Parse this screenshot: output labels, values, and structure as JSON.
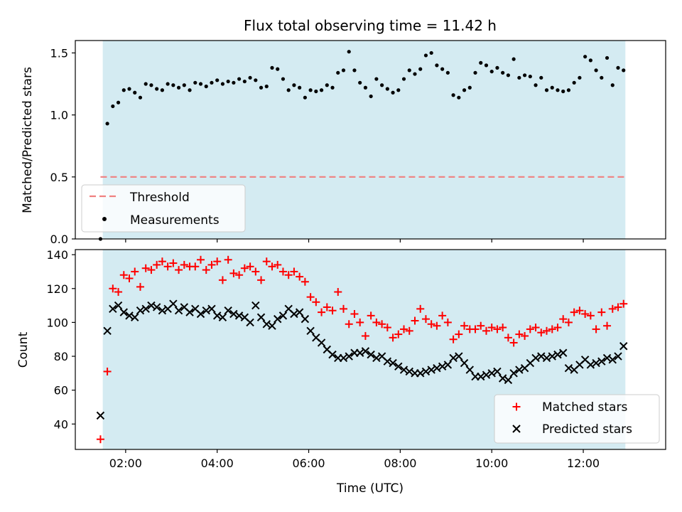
{
  "title": "Flux total observing time = 11.42 h",
  "colors": {
    "shade": "#d4ebf2",
    "threshold": "#f08080",
    "measurement": "#000000",
    "matched": "#ff0000",
    "predicted": "#000000"
  },
  "chart_data": [
    {
      "type": "scatter",
      "ylabel": "Matched/Predicted stars",
      "xlim": [
        0.9,
        13.8
      ],
      "ylim": [
        0.0,
        1.6
      ],
      "x_ticks": [
        2,
        4,
        6,
        8,
        10,
        12
      ],
      "y_ticks": [
        0.0,
        0.5,
        1.0,
        1.5
      ],
      "y_tick_labels": [
        "0.0",
        "0.5",
        "1.0",
        "1.5"
      ],
      "shaded_span": [
        1.5,
        12.92
      ],
      "legend": "lower-left",
      "threshold": {
        "name": "Threshold",
        "value": 0.5,
        "x_range": [
          1.45,
          12.95
        ]
      },
      "series": [
        {
          "name": "Measurements",
          "x": [
            1.45,
            1.6,
            1.72,
            1.84,
            1.96,
            2.08,
            2.2,
            2.32,
            2.44,
            2.56,
            2.68,
            2.8,
            2.92,
            3.04,
            3.16,
            3.28,
            3.4,
            3.52,
            3.64,
            3.76,
            3.88,
            4.0,
            4.12,
            4.24,
            4.36,
            4.48,
            4.6,
            4.72,
            4.84,
            4.96,
            5.08,
            5.2,
            5.32,
            5.44,
            5.56,
            5.68,
            5.8,
            5.92,
            6.04,
            6.16,
            6.28,
            6.4,
            6.52,
            6.64,
            6.76,
            6.88,
            7.0,
            7.12,
            7.24,
            7.36,
            7.48,
            7.6,
            7.72,
            7.84,
            7.96,
            8.08,
            8.2,
            8.32,
            8.44,
            8.56,
            8.68,
            8.8,
            8.92,
            9.04,
            9.16,
            9.28,
            9.4,
            9.52,
            9.64,
            9.76,
            9.88,
            10.0,
            10.12,
            10.24,
            10.36,
            10.48,
            10.6,
            10.72,
            10.84,
            10.96,
            11.08,
            11.2,
            11.32,
            11.44,
            11.56,
            11.68,
            11.8,
            11.92,
            12.04,
            12.16,
            12.28,
            12.4,
            12.52,
            12.64,
            12.76,
            12.88
          ],
          "y": [
            0.0,
            0.93,
            1.07,
            1.1,
            1.2,
            1.21,
            1.18,
            1.14,
            1.25,
            1.24,
            1.21,
            1.2,
            1.25,
            1.24,
            1.22,
            1.24,
            1.2,
            1.26,
            1.25,
            1.23,
            1.26,
            1.28,
            1.25,
            1.27,
            1.26,
            1.29,
            1.27,
            1.3,
            1.28,
            1.22,
            1.23,
            1.38,
            1.37,
            1.29,
            1.2,
            1.24,
            1.22,
            1.14,
            1.2,
            1.19,
            1.2,
            1.24,
            1.22,
            1.34,
            1.36,
            1.51,
            1.36,
            1.26,
            1.22,
            1.15,
            1.29,
            1.24,
            1.21,
            1.18,
            1.2,
            1.29,
            1.36,
            1.33,
            1.37,
            1.48,
            1.5,
            1.4,
            1.37,
            1.34,
            1.16,
            1.14,
            1.2,
            1.22,
            1.34,
            1.42,
            1.4,
            1.35,
            1.38,
            1.34,
            1.32,
            1.45,
            1.3,
            1.32,
            1.31,
            1.24,
            1.3,
            1.2,
            1.22,
            1.2,
            1.19,
            1.2,
            1.26,
            1.3,
            1.47,
            1.44,
            1.36,
            1.3,
            1.46,
            1.24,
            1.38,
            1.36
          ]
        }
      ]
    },
    {
      "type": "scatter",
      "xlabel": "Time (UTC)",
      "ylabel": "Count",
      "xlim": [
        0.9,
        13.8
      ],
      "ylim": [
        25,
        143
      ],
      "x_ticks": [
        2,
        4,
        6,
        8,
        10,
        12
      ],
      "x_tick_labels": [
        "02:00",
        "04:00",
        "06:00",
        "08:00",
        "10:00",
        "12:00"
      ],
      "y_ticks": [
        40,
        60,
        80,
        100,
        120,
        140
      ],
      "y_tick_labels": [
        "40",
        "60",
        "80",
        "100",
        "120",
        "140"
      ],
      "shaded_span": [
        1.5,
        12.92
      ],
      "legend": "lower-right",
      "series": [
        {
          "name": "Matched stars",
          "x": [
            1.45,
            1.6,
            1.72,
            1.84,
            1.96,
            2.08,
            2.2,
            2.32,
            2.44,
            2.56,
            2.68,
            2.8,
            2.92,
            3.04,
            3.16,
            3.28,
            3.4,
            3.52,
            3.64,
            3.76,
            3.88,
            4.0,
            4.12,
            4.24,
            4.36,
            4.48,
            4.6,
            4.72,
            4.84,
            4.96,
            5.08,
            5.2,
            5.32,
            5.44,
            5.56,
            5.68,
            5.8,
            5.92,
            6.04,
            6.16,
            6.28,
            6.4,
            6.52,
            6.64,
            6.76,
            6.88,
            7.0,
            7.12,
            7.24,
            7.36,
            7.48,
            7.6,
            7.72,
            7.84,
            7.96,
            8.08,
            8.2,
            8.32,
            8.44,
            8.56,
            8.68,
            8.8,
            8.92,
            9.04,
            9.16,
            9.28,
            9.4,
            9.52,
            9.64,
            9.76,
            9.88,
            10.0,
            10.12,
            10.24,
            10.36,
            10.48,
            10.6,
            10.72,
            10.84,
            10.96,
            11.08,
            11.2,
            11.32,
            11.44,
            11.56,
            11.68,
            11.8,
            11.92,
            12.04,
            12.16,
            12.28,
            12.4,
            12.52,
            12.64,
            12.76,
            12.88
          ],
          "y": [
            31,
            71,
            120,
            118,
            128,
            126,
            130,
            121,
            132,
            131,
            134,
            136,
            133,
            135,
            131,
            134,
            133,
            133,
            137,
            131,
            134,
            136,
            125,
            137,
            129,
            128,
            132,
            133,
            130,
            125,
            136,
            133,
            134,
            130,
            128,
            130,
            127,
            124,
            115,
            112,
            106,
            109,
            107,
            118,
            108,
            99,
            105,
            100,
            92,
            104,
            100,
            99,
            97,
            91,
            93,
            96,
            95,
            101,
            108,
            102,
            99,
            98,
            104,
            100,
            90,
            93,
            98,
            96,
            96,
            98,
            95,
            97,
            96,
            97,
            91,
            88,
            93,
            92,
            96,
            97,
            94,
            95,
            96,
            97,
            102,
            100,
            106,
            107,
            105,
            104,
            96,
            106,
            98,
            108,
            109,
            111
          ]
        },
        {
          "name": "Predicted stars",
          "x": [
            1.45,
            1.6,
            1.72,
            1.84,
            1.96,
            2.08,
            2.2,
            2.32,
            2.44,
            2.56,
            2.68,
            2.8,
            2.92,
            3.04,
            3.16,
            3.28,
            3.4,
            3.52,
            3.64,
            3.76,
            3.88,
            4.0,
            4.12,
            4.24,
            4.36,
            4.48,
            4.6,
            4.72,
            4.84,
            4.96,
            5.08,
            5.2,
            5.32,
            5.44,
            5.56,
            5.68,
            5.8,
            5.92,
            6.04,
            6.16,
            6.28,
            6.4,
            6.52,
            6.64,
            6.76,
            6.88,
            7.0,
            7.12,
            7.24,
            7.36,
            7.48,
            7.6,
            7.72,
            7.84,
            7.96,
            8.08,
            8.2,
            8.32,
            8.44,
            8.56,
            8.68,
            8.8,
            8.92,
            9.04,
            9.16,
            9.28,
            9.4,
            9.52,
            9.64,
            9.76,
            9.88,
            10.0,
            10.12,
            10.24,
            10.36,
            10.48,
            10.6,
            10.72,
            10.84,
            10.96,
            11.08,
            11.2,
            11.32,
            11.44,
            11.56,
            11.68,
            11.8,
            11.92,
            12.04,
            12.16,
            12.28,
            12.4,
            12.52,
            12.64,
            12.76,
            12.88
          ],
          "y": [
            45,
            95,
            108,
            110,
            106,
            104,
            103,
            107,
            108,
            110,
            109,
            107,
            108,
            111,
            107,
            109,
            106,
            108,
            105,
            107,
            108,
            104,
            103,
            107,
            105,
            104,
            103,
            100,
            110,
            103,
            99,
            98,
            102,
            104,
            108,
            105,
            106,
            102,
            95,
            91,
            88,
            84,
            81,
            79,
            79,
            80,
            82,
            82,
            83,
            81,
            79,
            80,
            77,
            76,
            74,
            72,
            71,
            70,
            70,
            71,
            72,
            73,
            74,
            75,
            79,
            80,
            76,
            72,
            68,
            68,
            69,
            70,
            71,
            67,
            66,
            70,
            72,
            73,
            76,
            79,
            80,
            79,
            80,
            81,
            82,
            73,
            72,
            75,
            78,
            75,
            76,
            77,
            79,
            78,
            80,
            86
          ]
        }
      ]
    }
  ]
}
